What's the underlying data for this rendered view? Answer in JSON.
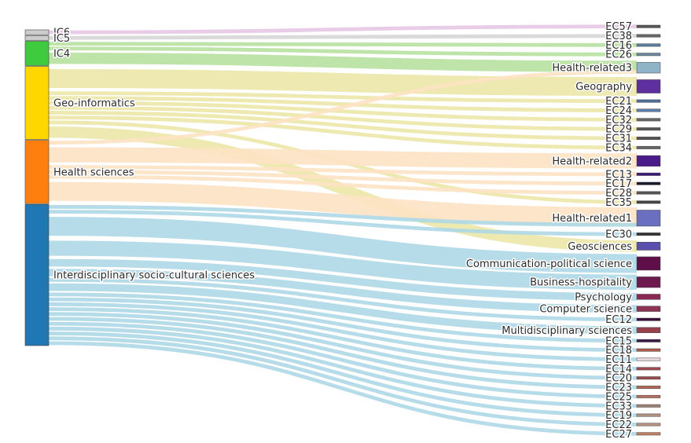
{
  "chart_data": {
    "type": "sankey",
    "sources": [
      {
        "id": "IC6",
        "label": "IC6",
        "color": "#cccccc",
        "link_color": "#e6c7e6"
      },
      {
        "id": "IC5",
        "label": "IC5",
        "color": "#cccccc",
        "link_color": "#d6d6d6"
      },
      {
        "id": "IC4",
        "label": "IC4",
        "color": "#3ecb3e",
        "link_color": "#b7e1a1"
      },
      {
        "id": "GEO",
        "label": "Geo-informatics",
        "color": "#ffd700",
        "link_color": "#ece7a8"
      },
      {
        "id": "HS",
        "label": "Health sciences",
        "color": "#ff7f0e",
        "link_color": "#fde2c4"
      },
      {
        "id": "ISC",
        "label": "Interdisciplinary socio-cultural sciences",
        "color": "#1f77b4",
        "link_color": "#add8e6"
      }
    ],
    "targets": [
      {
        "id": "EC57",
        "label": "EC57",
        "color": "#555555"
      },
      {
        "id": "EC38",
        "label": "EC38",
        "color": "#666666"
      },
      {
        "id": "EC16",
        "label": "EC16",
        "color": "#5a7fa0"
      },
      {
        "id": "EC26",
        "label": "EC26",
        "color": "#6b88a0"
      },
      {
        "id": "HR3",
        "label": "Health-related3",
        "color": "#8fb3c7"
      },
      {
        "id": "GEOG",
        "label": "Geography",
        "color": "#5e2f9e"
      },
      {
        "id": "EC21",
        "label": "EC21",
        "color": "#4e6e9e"
      },
      {
        "id": "EC24",
        "label": "EC24",
        "color": "#5a7fb0"
      },
      {
        "id": "EC32",
        "label": "EC32",
        "color": "#666666"
      },
      {
        "id": "EC29",
        "label": "EC29",
        "color": "#555555"
      },
      {
        "id": "EC31",
        "label": "EC31",
        "color": "#555555"
      },
      {
        "id": "EC34",
        "label": "EC34",
        "color": "#666666"
      },
      {
        "id": "HR2",
        "label": "Health-related2",
        "color": "#4a1c8a"
      },
      {
        "id": "EC13",
        "label": "EC13",
        "color": "#3c1a78"
      },
      {
        "id": "EC17",
        "label": "EC17",
        "color": "#1a1a2e"
      },
      {
        "id": "EC28",
        "label": "EC28",
        "color": "#555555"
      },
      {
        "id": "EC35",
        "label": "EC35",
        "color": "#444444"
      },
      {
        "id": "HR1",
        "label": "Health-related1",
        "color": "#6a6fbf"
      },
      {
        "id": "EC30",
        "label": "EC30",
        "color": "#333333"
      },
      {
        "id": "GEOS",
        "label": "Geosciences",
        "color": "#5a4fae"
      },
      {
        "id": "CPS",
        "label": "Communication-political science",
        "color": "#5e0f4a"
      },
      {
        "id": "BH",
        "label": "Business-hospitality",
        "color": "#6e1a4e"
      },
      {
        "id": "PSY",
        "label": "Psychology",
        "color": "#8a2a52"
      },
      {
        "id": "CS",
        "label": "Computer science",
        "color": "#8e3355"
      },
      {
        "id": "EC12",
        "label": "EC12",
        "color": "#3a0f3a"
      },
      {
        "id": "MS",
        "label": "Multidisciplinary sciences",
        "color": "#99404f"
      },
      {
        "id": "EC15",
        "label": "EC15",
        "color": "#3a1a4a"
      },
      {
        "id": "EC18",
        "label": "EC18",
        "color": "#b05a4a"
      },
      {
        "id": "EC11",
        "label": "EC11",
        "color": "#e8d8e0"
      },
      {
        "id": "EC14",
        "label": "EC14",
        "color": "#a04a50"
      },
      {
        "id": "EC20",
        "label": "EC20",
        "color": "#9a4a4a"
      },
      {
        "id": "EC23",
        "label": "EC23",
        "color": "#b06a55"
      },
      {
        "id": "EC25",
        "label": "EC25",
        "color": "#b87060"
      },
      {
        "id": "EC33",
        "label": "EC33",
        "color": "#a08070"
      },
      {
        "id": "EC19",
        "label": "EC19",
        "color": "#b09080"
      },
      {
        "id": "EC22",
        "label": "EC22",
        "color": "#b89080"
      },
      {
        "id": "EC27",
        "label": "EC27",
        "color": "#c08060"
      }
    ],
    "links": [
      {
        "source": "IC6",
        "target": "EC57",
        "value": 1
      },
      {
        "source": "IC5",
        "target": "EC38",
        "value": 1
      },
      {
        "source": "IC4",
        "target": "EC16",
        "value": 1
      },
      {
        "source": "IC4",
        "target": "EC26",
        "value": 1
      },
      {
        "source": "IC4",
        "target": "HR3",
        "value": 3
      },
      {
        "source": "GEO",
        "target": "GEOG",
        "value": 5
      },
      {
        "source": "GEO",
        "target": "EC21",
        "value": 1
      },
      {
        "source": "GEO",
        "target": "EC24",
        "value": 1
      },
      {
        "source": "GEO",
        "target": "EC32",
        "value": 1
      },
      {
        "source": "GEO",
        "target": "EC29",
        "value": 1
      },
      {
        "source": "GEO",
        "target": "EC31",
        "value": 1
      },
      {
        "source": "GEO",
        "target": "EC34",
        "value": 1
      },
      {
        "source": "GEO",
        "target": "EC35",
        "value": 1
      },
      {
        "source": "GEO",
        "target": "GEOS",
        "value": 3
      },
      {
        "source": "HS",
        "target": "HR3",
        "value": 1
      },
      {
        "source": "HS",
        "target": "HR2",
        "value": 4
      },
      {
        "source": "HS",
        "target": "EC13",
        "value": 1
      },
      {
        "source": "HS",
        "target": "EC17",
        "value": 1
      },
      {
        "source": "HS",
        "target": "EC28",
        "value": 1
      },
      {
        "source": "HS",
        "target": "HR1",
        "value": 5
      },
      {
        "source": "ISC",
        "target": "HR1",
        "value": 1
      },
      {
        "source": "ISC",
        "target": "EC30",
        "value": 1
      },
      {
        "source": "ISC",
        "target": "CPS",
        "value": 5
      },
      {
        "source": "ISC",
        "target": "BH",
        "value": 4
      },
      {
        "source": "ISC",
        "target": "PSY",
        "value": 2
      },
      {
        "source": "ISC",
        "target": "CS",
        "value": 2
      },
      {
        "source": "ISC",
        "target": "EC12",
        "value": 1
      },
      {
        "source": "ISC",
        "target": "MS",
        "value": 2
      },
      {
        "source": "ISC",
        "target": "EC15",
        "value": 1
      },
      {
        "source": "ISC",
        "target": "EC18",
        "value": 1
      },
      {
        "source": "ISC",
        "target": "EC11",
        "value": 1
      },
      {
        "source": "ISC",
        "target": "EC14",
        "value": 1
      },
      {
        "source": "ISC",
        "target": "EC20",
        "value": 1
      },
      {
        "source": "ISC",
        "target": "EC23",
        "value": 1
      },
      {
        "source": "ISC",
        "target": "EC25",
        "value": 1
      },
      {
        "source": "ISC",
        "target": "EC33",
        "value": 1
      },
      {
        "source": "ISC",
        "target": "EC19",
        "value": 1
      },
      {
        "source": "ISC",
        "target": "EC22",
        "value": 1
      },
      {
        "source": "ISC",
        "target": "EC27",
        "value": 1
      }
    ]
  }
}
